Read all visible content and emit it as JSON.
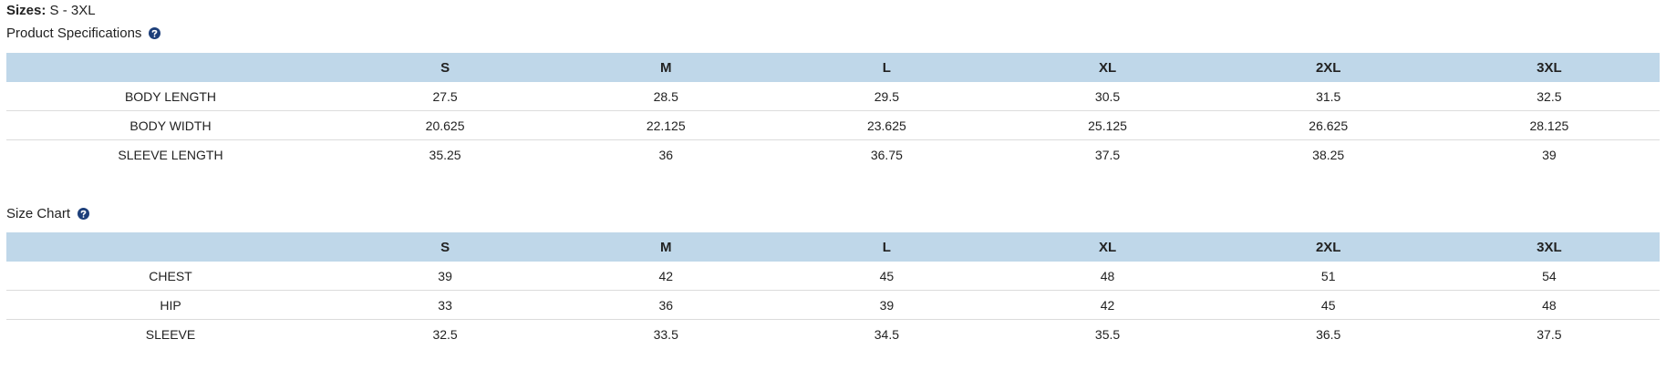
{
  "header": {
    "sizes_label": "Sizes:",
    "sizes_value": "S - 3XL"
  },
  "sections": [
    {
      "title": "Product Specifications",
      "columns": [
        "S",
        "M",
        "L",
        "XL",
        "2XL",
        "3XL"
      ],
      "rows": [
        {
          "label": "BODY LENGTH",
          "values": [
            "27.5",
            "28.5",
            "29.5",
            "30.5",
            "31.5",
            "32.5"
          ]
        },
        {
          "label": "BODY WIDTH",
          "values": [
            "20.625",
            "22.125",
            "23.625",
            "25.125",
            "26.625",
            "28.125"
          ]
        },
        {
          "label": "SLEEVE LENGTH",
          "values": [
            "35.25",
            "36",
            "36.75",
            "37.5",
            "38.25",
            "39"
          ]
        }
      ]
    },
    {
      "title": "Size Chart",
      "columns": [
        "S",
        "M",
        "L",
        "XL",
        "2XL",
        "3XL"
      ],
      "rows": [
        {
          "label": "CHEST",
          "values": [
            "39",
            "42",
            "45",
            "48",
            "51",
            "54"
          ]
        },
        {
          "label": "HIP",
          "values": [
            "33",
            "36",
            "39",
            "42",
            "45",
            "48"
          ]
        },
        {
          "label": "SLEEVE",
          "values": [
            "32.5",
            "33.5",
            "34.5",
            "35.5",
            "36.5",
            "37.5"
          ]
        }
      ]
    }
  ]
}
